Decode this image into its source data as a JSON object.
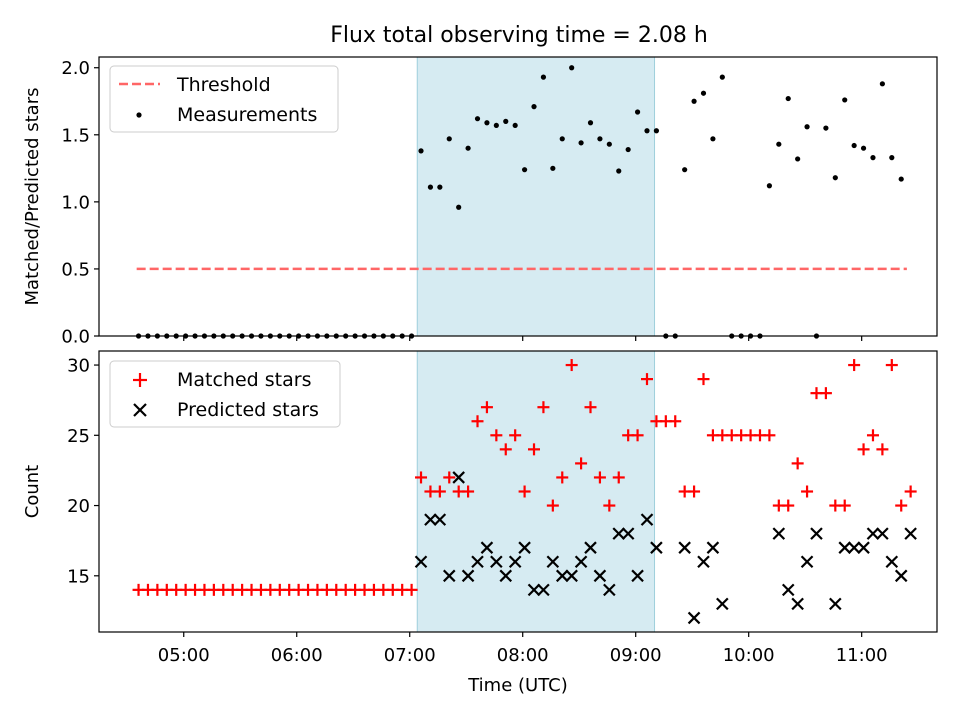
{
  "title": "Flux total observing time = 2.08 h",
  "colors": {
    "threshold": "#ff6666",
    "shade": "#add8e6",
    "matched": "#ff0000",
    "predicted": "#000000",
    "measurement": "#000000"
  },
  "chart_data": [
    {
      "type": "scatter",
      "ylabel": "Matched/Predicted stars",
      "ylim": [
        0,
        2.08
      ],
      "yticks": [
        "0.0",
        "0.5",
        "1.0",
        "1.5",
        "2.0"
      ],
      "legend": {
        "placement": "top-left",
        "entries": [
          "Threshold",
          "Measurements"
        ]
      },
      "highlight": {
        "from": "07:04",
        "to": "09:10"
      },
      "threshold": {
        "value": 0.5,
        "from": "04:35",
        "to": "11:24"
      },
      "series": [
        {
          "name": "Measurements",
          "x": [
            "04:36",
            "04:41",
            "04:46",
            "04:51",
            "04:56",
            "05:01",
            "05:06",
            "05:11",
            "05:16",
            "05:21",
            "05:26",
            "05:31",
            "05:36",
            "05:41",
            "05:46",
            "05:51",
            "05:56",
            "06:01",
            "06:06",
            "06:11",
            "06:16",
            "06:21",
            "06:26",
            "06:31",
            "06:36",
            "06:41",
            "06:46",
            "06:51",
            "06:56",
            "07:01",
            "07:06",
            "07:11",
            "07:16",
            "07:21",
            "07:26",
            "07:31",
            "07:36",
            "07:41",
            "07:46",
            "07:51",
            "07:56",
            "08:01",
            "08:06",
            "08:11",
            "08:16",
            "08:21",
            "08:26",
            "08:31",
            "08:36",
            "08:41",
            "08:46",
            "08:51",
            "08:56",
            "09:01",
            "09:06",
            "09:11",
            "09:16",
            "09:21",
            "09:26",
            "09:31",
            "09:36",
            "09:41",
            "09:46",
            "09:51",
            "09:56",
            "10:01",
            "10:06",
            "10:11",
            "10:16",
            "10:21",
            "10:26",
            "10:31",
            "10:36",
            "10:41",
            "10:46",
            "10:51",
            "10:56",
            "11:01",
            "11:06",
            "11:11",
            "11:16",
            "11:21",
            "11:26"
          ],
          "y": [
            0,
            0,
            0,
            0,
            0,
            0,
            0,
            0,
            0,
            0,
            0,
            0,
            0,
            0,
            0,
            0,
            0,
            0,
            0,
            0,
            0,
            0,
            0,
            0,
            0,
            0,
            0,
            0,
            0,
            0,
            1.38,
            1.11,
            1.11,
            1.47,
            0.96,
            1.4,
            1.62,
            1.59,
            1.57,
            1.6,
            1.57,
            1.24,
            1.71,
            1.93,
            1.25,
            1.47,
            2.0,
            1.44,
            1.59,
            1.47,
            1.43,
            1.23,
            1.39,
            1.67,
            1.53,
            1.53,
            0,
            0,
            1.24,
            1.75,
            1.81,
            1.47,
            1.93,
            0,
            0,
            0,
            0,
            1.12,
            1.43,
            1.77,
            1.32,
            1.56,
            0,
            1.55,
            1.18,
            1.76,
            1.42,
            1.4,
            1.33,
            1.88,
            1.33,
            1.17,
            null
          ]
        }
      ]
    },
    {
      "type": "scatter",
      "xlabel": "Time (UTC)",
      "ylabel": "Count",
      "ylim": [
        11,
        31
      ],
      "yticks": [
        "15",
        "20",
        "25",
        "30"
      ],
      "xlim": [
        "04:15",
        "11:40"
      ],
      "xticks": [
        "05:00",
        "06:00",
        "07:00",
        "08:00",
        "09:00",
        "10:00",
        "11:00"
      ],
      "legend": {
        "placement": "top-left",
        "entries": [
          "Matched stars",
          "Predicted stars"
        ]
      },
      "highlight": {
        "from": "07:04",
        "to": "09:10"
      },
      "series": [
        {
          "name": "Matched stars",
          "x": [
            "04:36",
            "04:41",
            "04:46",
            "04:51",
            "04:56",
            "05:01",
            "05:06",
            "05:11",
            "05:16",
            "05:21",
            "05:26",
            "05:31",
            "05:36",
            "05:41",
            "05:46",
            "05:51",
            "05:56",
            "06:01",
            "06:06",
            "06:11",
            "06:16",
            "06:21",
            "06:26",
            "06:31",
            "06:36",
            "06:41",
            "06:46",
            "06:51",
            "06:56",
            "07:01",
            "07:06",
            "07:11",
            "07:16",
            "07:21",
            "07:26",
            "07:31",
            "07:36",
            "07:41",
            "07:46",
            "07:51",
            "07:56",
            "08:01",
            "08:06",
            "08:11",
            "08:16",
            "08:21",
            "08:26",
            "08:31",
            "08:36",
            "08:41",
            "08:46",
            "08:51",
            "08:56",
            "09:01",
            "09:06",
            "09:11",
            "09:16",
            "09:21",
            "09:26",
            "09:31",
            "09:36",
            "09:41",
            "09:46",
            "09:51",
            "09:56",
            "10:01",
            "10:06",
            "10:11",
            "10:16",
            "10:21",
            "10:26",
            "10:31",
            "10:36",
            "10:41",
            "10:46",
            "10:51",
            "10:56",
            "11:01",
            "11:06",
            "11:11",
            "11:16",
            "11:21",
            "11:26"
          ],
          "y": [
            14,
            14,
            14,
            14,
            14,
            14,
            14,
            14,
            14,
            14,
            14,
            14,
            14,
            14,
            14,
            14,
            14,
            14,
            14,
            14,
            14,
            14,
            14,
            14,
            14,
            14,
            14,
            14,
            14,
            14,
            22,
            21,
            21,
            22,
            21,
            21,
            26,
            27,
            25,
            24,
            25,
            21,
            24,
            27,
            20,
            22,
            30,
            23,
            27,
            22,
            20,
            22,
            25,
            25,
            29,
            26,
            26,
            26,
            21,
            21,
            29,
            25,
            25,
            25,
            25,
            25,
            25,
            25,
            20,
            20,
            23,
            21,
            28,
            28,
            20,
            20,
            30,
            24,
            25,
            24,
            30,
            20,
            21
          ]
        },
        {
          "name": "Predicted stars",
          "x": [
            "07:06",
            "07:11",
            "07:16",
            "07:21",
            "07:26",
            "07:31",
            "07:36",
            "07:41",
            "07:46",
            "07:51",
            "07:56",
            "08:01",
            "08:06",
            "08:11",
            "08:16",
            "08:21",
            "08:26",
            "08:31",
            "08:36",
            "08:41",
            "08:46",
            "08:51",
            "08:56",
            "09:01",
            "09:06",
            "09:11",
            "09:26",
            "09:31",
            "09:36",
            "09:41",
            "09:46",
            "10:16",
            "10:21",
            "10:26",
            "10:31",
            "10:36",
            "10:46",
            "10:51",
            "10:56",
            "11:01",
            "11:06",
            "11:11",
            "11:16",
            "11:21",
            "11:26"
          ],
          "y": [
            16,
            19,
            19,
            15,
            22,
            15,
            16,
            17,
            16,
            15,
            16,
            17,
            14,
            14,
            16,
            15,
            15,
            16,
            17,
            15,
            14,
            18,
            18,
            15,
            19,
            17,
            17,
            12,
            16,
            17,
            13,
            18,
            14,
            13,
            16,
            18,
            13,
            17,
            17,
            17,
            18,
            18,
            16,
            15,
            18
          ]
        }
      ]
    }
  ]
}
